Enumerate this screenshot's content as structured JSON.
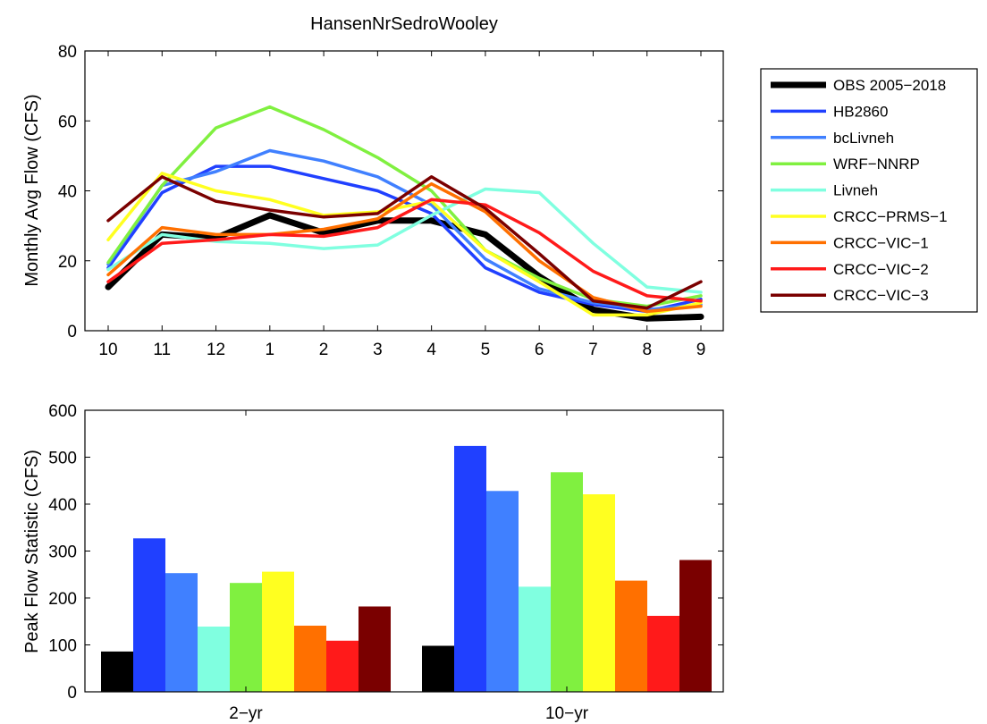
{
  "chart_data": [
    {
      "type": "line",
      "title": "HansenNrSedroWooley",
      "xlabel": "",
      "ylabel": "Monthly Avg Flow (CFS)",
      "categories": [
        "10",
        "11",
        "12",
        "1",
        "2",
        "3",
        "4",
        "5",
        "6",
        "7",
        "8",
        "9"
      ],
      "ylim": [
        0,
        80
      ],
      "yticks": [
        "0",
        "20",
        "40",
        "60",
        "80"
      ],
      "legend_position": "right",
      "series": [
        {
          "name": "OBS 2005−2018",
          "color": "#000000",
          "width": 7,
          "values": [
            12.5,
            27.5,
            26.5,
            33,
            28,
            31.5,
            31.5,
            27.5,
            15.5,
            6,
            3.5,
            4
          ]
        },
        {
          "name": "HB2860",
          "color": "#2040ff",
          "width": 3.5,
          "values": [
            18,
            39.5,
            47,
            47,
            43.5,
            40,
            33.5,
            18,
            11,
            7.5,
            5.5,
            9
          ]
        },
        {
          "name": "bcLivneh",
          "color": "#4080ff",
          "width": 3.5,
          "values": [
            19,
            41.5,
            45.5,
            51.5,
            48.5,
            44,
            36,
            20.5,
            12,
            8,
            6,
            7.5
          ]
        },
        {
          "name": "WRF−NNRP",
          "color": "#80f040",
          "width": 3.5,
          "values": [
            19.5,
            41.5,
            58,
            64,
            57.5,
            49.5,
            40,
            23,
            15,
            9,
            7,
            10
          ]
        },
        {
          "name": "Livneh",
          "color": "#80ffe0",
          "width": 3.5,
          "values": [
            17.5,
            27.5,
            25.5,
            25,
            23.5,
            24.5,
            33,
            40.5,
            39.5,
            25,
            12.5,
            11
          ]
        },
        {
          "name": "CRCC−PRMS−1",
          "color": "#ffff20",
          "width": 3.5,
          "values": [
            26,
            45,
            40,
            37.5,
            33,
            34,
            37,
            23,
            14,
            4.5,
            4.5,
            8
          ]
        },
        {
          "name": "CRCC−VIC−1",
          "color": "#ff7000",
          "width": 3.5,
          "values": [
            16,
            29.5,
            27.5,
            27.5,
            29,
            32,
            42,
            34,
            20,
            9.5,
            5.5,
            7
          ]
        },
        {
          "name": "CRCC−VIC−2",
          "color": "#ff1a1a",
          "width": 3.5,
          "values": [
            14,
            25,
            26,
            27.5,
            27,
            29.5,
            37.5,
            36,
            28,
            17,
            10,
            8.5
          ]
        },
        {
          "name": "CRCC−VIC−3",
          "color": "#7a0000",
          "width": 3.5,
          "values": [
            31.5,
            44,
            37,
            34.5,
            32.5,
            33.5,
            44,
            35,
            22,
            8.5,
            6.5,
            14
          ]
        }
      ]
    },
    {
      "type": "bar",
      "title": "",
      "xlabel": "",
      "ylabel": "Peak Flow Statistic (CFS)",
      "categories": [
        "2−yr",
        "10−yr"
      ],
      "ylim": [
        0,
        600
      ],
      "yticks": [
        "0",
        "100",
        "200",
        "300",
        "400",
        "500",
        "600"
      ],
      "series": [
        {
          "name": "OBS 2005−2018",
          "color": "#000000",
          "values": [
            86,
            98
          ]
        },
        {
          "name": "HB2860",
          "color": "#2040ff",
          "values": [
            327,
            524
          ]
        },
        {
          "name": "bcLivneh",
          "color": "#4080ff",
          "values": [
            253,
            428
          ]
        },
        {
          "name": "Livneh",
          "color": "#80ffe0",
          "values": [
            139,
            224
          ]
        },
        {
          "name": "WRF−NNRP",
          "color": "#80f040",
          "values": [
            232,
            468
          ]
        },
        {
          "name": "CRCC−PRMS−1",
          "color": "#ffff20",
          "values": [
            256,
            421
          ]
        },
        {
          "name": "CRCC−VIC−1",
          "color": "#ff7000",
          "values": [
            141,
            237
          ]
        },
        {
          "name": "CRCC−VIC−2",
          "color": "#ff1a1a",
          "values": [
            109,
            162
          ]
        },
        {
          "name": "CRCC−VIC−3",
          "color": "#7a0000",
          "values": [
            182,
            281
          ]
        }
      ]
    }
  ]
}
